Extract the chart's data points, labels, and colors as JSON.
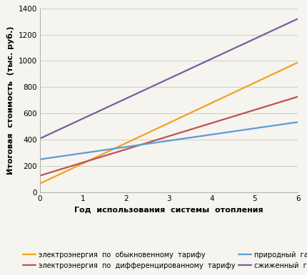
{
  "xlabel": "Год  использования  системы  отопления",
  "ylabel": "Итоговая  стоимость  (тыс. руб.)",
  "xlim": [
    0,
    6
  ],
  "ylim": [
    0,
    1400
  ],
  "xticks": [
    0,
    1,
    2,
    3,
    4,
    5,
    6
  ],
  "yticks": [
    0,
    200,
    400,
    600,
    800,
    1000,
    1200,
    1400
  ],
  "lines": [
    {
      "label": "электроэнергия  по  обыкновенному  тарифу",
      "color": "#F5A020",
      "x": [
        0,
        6
      ],
      "y": [
        68,
        988
      ]
    },
    {
      "label": "электроэнергия  по  дифференцированному  тарифу",
      "color": "#C05050",
      "x": [
        0,
        6
      ],
      "y": [
        128,
        728
      ]
    },
    {
      "label": "природный  газ",
      "color": "#5B9BD5",
      "x": [
        0,
        6
      ],
      "y": [
        252,
        535
      ]
    },
    {
      "label": "сжиженный  газ",
      "color": "#7060A0",
      "x": [
        0,
        6
      ],
      "y": [
        410,
        1320
      ]
    }
  ],
  "background_color": "#F5F4EE",
  "grid_color": "#CCCCCC",
  "tick_fontsize": 7.5,
  "label_fontsize": 8,
  "legend_fontsize": 7,
  "linewidth": 1.6
}
